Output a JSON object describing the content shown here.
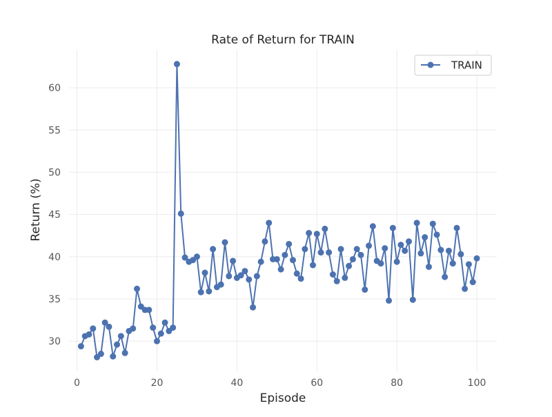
{
  "chart_data": {
    "type": "line",
    "title": "Rate of Return for TRAIN",
    "xlabel": "Episode",
    "ylabel": "Return (%)",
    "xlim": [
      -2,
      105
    ],
    "ylim": [
      26.5,
      64.5
    ],
    "xticks": [
      0,
      20,
      40,
      60,
      80,
      100
    ],
    "yticks": [
      30,
      35,
      40,
      45,
      50,
      55,
      60
    ],
    "grid": true,
    "legend": {
      "position": "top-right"
    },
    "series": [
      {
        "name": "TRAIN",
        "color": "#4c72b0",
        "marker": "circle",
        "x": [
          1,
          2,
          3,
          4,
          5,
          6,
          7,
          8,
          9,
          10,
          11,
          12,
          13,
          14,
          15,
          16,
          17,
          18,
          19,
          20,
          21,
          22,
          23,
          24,
          25,
          26,
          27,
          28,
          29,
          30,
          31,
          32,
          33,
          34,
          35,
          36,
          37,
          38,
          39,
          40,
          41,
          42,
          43,
          44,
          45,
          46,
          47,
          48,
          49,
          50,
          51,
          52,
          53,
          54,
          55,
          56,
          57,
          58,
          59,
          60,
          61,
          62,
          63,
          64,
          65,
          66,
          67,
          68,
          69,
          70,
          71,
          72,
          73,
          74,
          75,
          76,
          77,
          78,
          79,
          80,
          81,
          82,
          83,
          84,
          85,
          86,
          87,
          88,
          89,
          90,
          91,
          92,
          93,
          94,
          95,
          96,
          97,
          98,
          99,
          100
        ],
        "y": [
          29.4,
          30.6,
          30.8,
          31.5,
          28.1,
          28.5,
          32.2,
          31.7,
          28.2,
          29.6,
          30.6,
          28.6,
          31.2,
          31.5,
          36.2,
          34.1,
          33.7,
          33.7,
          31.6,
          30.0,
          30.9,
          32.2,
          31.2,
          31.6,
          62.8,
          45.1,
          39.9,
          39.4,
          39.6,
          40.0,
          35.8,
          38.1,
          35.9,
          40.9,
          36.4,
          36.7,
          41.7,
          37.7,
          39.5,
          37.5,
          37.8,
          38.3,
          37.3,
          34.0,
          37.7,
          39.4,
          41.8,
          44.0,
          39.7,
          39.7,
          38.5,
          40.2,
          41.5,
          39.6,
          38.0,
          37.4,
          40.9,
          42.8,
          39.0,
          42.7,
          40.5,
          43.3,
          40.5,
          37.9,
          37.1,
          40.9,
          37.5,
          38.9,
          39.7,
          40.9,
          40.2,
          36.1,
          41.3,
          43.6,
          39.5,
          39.2,
          41.0,
          34.8,
          43.4,
          39.4,
          41.4,
          40.7,
          41.8,
          34.9,
          44.0,
          40.4,
          42.3,
          38.8,
          43.9,
          42.6,
          40.8,
          37.6,
          40.7,
          39.2,
          43.4,
          40.3,
          36.2,
          39.1,
          37.0,
          39.8
        ]
      }
    ]
  }
}
